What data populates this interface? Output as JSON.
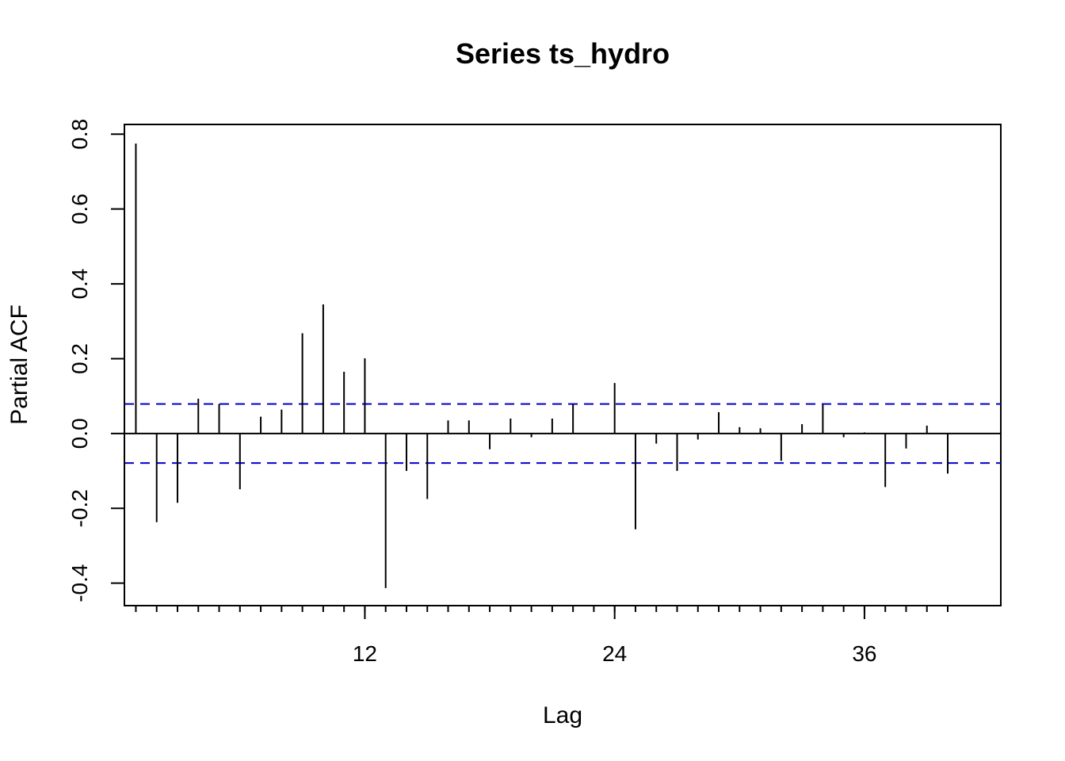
{
  "chart_data": {
    "type": "bar",
    "title": "Series  ts_hydro",
    "xlabel": "Lag",
    "ylabel": "Partial ACF",
    "xlim": [
      0.45,
      42.55
    ],
    "ylim": [
      -0.46,
      0.826
    ],
    "x_ticks": [
      1,
      2,
      3,
      4,
      5,
      6,
      7,
      8,
      9,
      10,
      11,
      12,
      13,
      14,
      15,
      16,
      17,
      18,
      19,
      20,
      21,
      22,
      23,
      24,
      25,
      26,
      27,
      28,
      29,
      30,
      31,
      32,
      33,
      34,
      35,
      36,
      37,
      38,
      39,
      40
    ],
    "x_tick_labels": [
      {
        "x": 12,
        "label": "12"
      },
      {
        "x": 24,
        "label": "24"
      },
      {
        "x": 36,
        "label": "36"
      }
    ],
    "y_ticks": [
      {
        "y": -0.4,
        "label": "-0.4"
      },
      {
        "y": -0.2,
        "label": "-0.2"
      },
      {
        "y": 0.0,
        "label": "0.0"
      },
      {
        "y": 0.2,
        "label": "0.2"
      },
      {
        "y": 0.4,
        "label": "0.4"
      },
      {
        "y": 0.6,
        "label": "0.6"
      },
      {
        "y": 0.8,
        "label": "0.8"
      }
    ],
    "confidence_bound": 0.079,
    "confidence_color": "#0000cc",
    "bar_color": "#000000",
    "lags": [
      1,
      2,
      3,
      4,
      5,
      6,
      7,
      8,
      9,
      10,
      11,
      12,
      13,
      14,
      15,
      16,
      17,
      18,
      19,
      20,
      21,
      22,
      23,
      24,
      25,
      26,
      27,
      28,
      29,
      30,
      31,
      32,
      33,
      34,
      35,
      36,
      37,
      38,
      39,
      40
    ],
    "values": [
      0.775,
      -0.237,
      -0.185,
      0.093,
      0.079,
      -0.149,
      0.045,
      0.064,
      0.268,
      0.345,
      0.165,
      0.201,
      -0.413,
      -0.1,
      -0.175,
      0.035,
      0.035,
      -0.042,
      0.04,
      -0.01,
      0.04,
      0.079,
      0.0,
      0.135,
      -0.256,
      -0.027,
      -0.1,
      -0.016,
      0.057,
      0.017,
      0.014,
      -0.073,
      0.025,
      0.077,
      -0.01,
      0.003,
      -0.143,
      -0.04,
      0.021,
      -0.107
    ],
    "grid": false
  }
}
